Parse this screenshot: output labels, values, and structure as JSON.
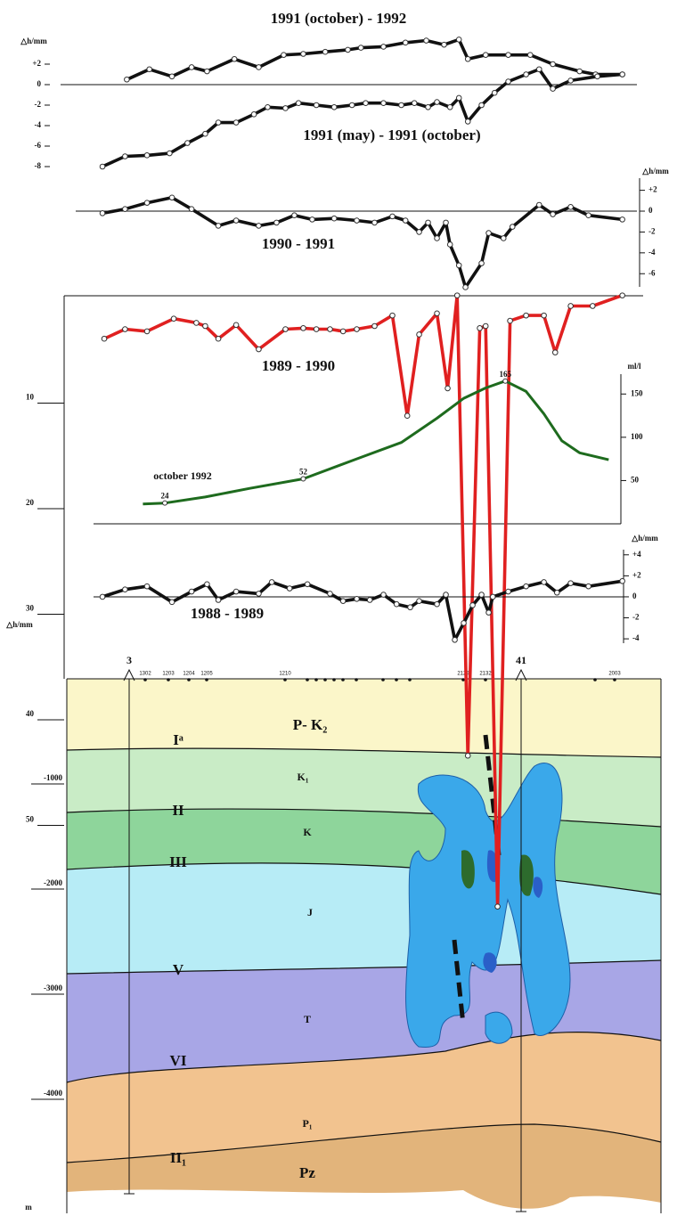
{
  "chart_data": [
    {
      "type": "line",
      "ylabel": "△h/mm",
      "ylim": [
        -10,
        5
      ],
      "yticks": [
        {
          "value": 2,
          "label": "+2"
        },
        0,
        -2,
        -4,
        -6,
        -8
      ],
      "xlim": [
        0,
        100
      ],
      "zero_line": true,
      "series": [
        {
          "name": "1991 (october) - 1992",
          "color": "#111111",
          "markers": true,
          "x": [
            10.1,
            13.9,
            17.7,
            21.0,
            23.6,
            28.2,
            32.3,
            36.5,
            39.8,
            43.5,
            47.3,
            49.5,
            53.3,
            57.0,
            60.5,
            63.5,
            66.0,
            67.5,
            70.5,
            74.3,
            78.0,
            81.8,
            86.3,
            89.0,
            93.5
          ],
          "values": [
            0.5,
            1.5,
            0.8,
            1.7,
            1.3,
            2.5,
            1.7,
            2.9,
            3.0,
            3.2,
            3.4,
            3.6,
            3.7,
            4.1,
            4.3,
            3.9,
            4.4,
            2.5,
            2.9,
            2.9,
            2.9,
            2.0,
            1.3,
            1.0,
            1.0
          ]
        },
        {
          "name": "1991 (may) - 1991 (october)",
          "color": "#111111",
          "markers": true,
          "x": [
            6.0,
            9.8,
            13.5,
            17.3,
            20.3,
            23.3,
            25.5,
            28.5,
            31.5,
            33.8,
            36.8,
            39.0,
            42.0,
            45.0,
            48.0,
            50.3,
            53.3,
            56.3,
            58.5,
            60.8,
            62.3,
            64.5,
            66.0,
            67.5,
            69.8,
            72.0,
            74.3,
            77.3,
            79.5,
            81.8,
            84.8,
            89.3,
            93.5
          ],
          "values": [
            -8.0,
            -7.0,
            -6.9,
            -6.7,
            -5.7,
            -4.8,
            -3.7,
            -3.7,
            -2.9,
            -2.2,
            -2.3,
            -1.8,
            -2.0,
            -2.2,
            -2.0,
            -1.8,
            -1.8,
            -2.0,
            -1.8,
            -2.2,
            -1.7,
            -2.2,
            -1.3,
            -3.6,
            -2.0,
            -0.8,
            0.3,
            1.0,
            1.5,
            -0.4,
            0.4,
            0.8,
            1.0
          ]
        }
      ]
    },
    {
      "type": "line",
      "ylabel": "△h/mm",
      "ylim": [
        -7.5,
        3
      ],
      "yticks": [
        {
          "value": 2,
          "label": "+2"
        },
        0,
        -2,
        -4,
        -6
      ],
      "xlim": [
        0,
        100
      ],
      "zero_line": true,
      "series": [
        {
          "name": "1990 - 1991",
          "color": "#111111",
          "markers": true,
          "x": [
            6.0,
            9.8,
            13.5,
            17.7,
            21.0,
            25.5,
            28.5,
            32.3,
            35.3,
            38.3,
            41.3,
            45.0,
            48.8,
            51.8,
            54.8,
            57.0,
            59.3,
            60.8,
            62.3,
            63.8,
            64.5,
            66.0,
            67.1,
            69.8,
            71.0,
            73.5,
            75.0,
            79.5,
            81.8,
            84.8,
            87.8,
            93.5
          ],
          "values": [
            -0.2,
            0.2,
            0.8,
            1.3,
            0.2,
            -1.4,
            -0.9,
            -1.4,
            -1.1,
            -0.4,
            -0.8,
            -0.7,
            -0.9,
            -1.1,
            -0.5,
            -0.9,
            -2.0,
            -1.1,
            -2.6,
            -1.1,
            -3.2,
            -5.2,
            -7.3,
            -5.0,
            -2.1,
            -2.6,
            -1.5,
            0.6,
            -0.3,
            0.4,
            -0.4,
            -0.8
          ]
        }
      ]
    },
    {
      "type": "line",
      "ylabel": "△h/mm",
      "ylim": [
        0,
        86
      ],
      "y_inverted": true,
      "yticks": [
        10,
        20,
        30,
        40,
        50
      ],
      "y2label": "ml/l",
      "y2lim": [
        0,
        175
      ],
      "y2ticks": [
        50,
        100,
        150
      ],
      "xlim": [
        0,
        100
      ],
      "series": [
        {
          "name": "1989 - 1990",
          "color": "#e02020",
          "markers": true,
          "x": [
            6.3,
            9.8,
            13.5,
            18.0,
            21.8,
            23.3,
            25.5,
            28.5,
            32.3,
            36.8,
            39.8,
            42.0,
            44.3,
            46.5,
            48.8,
            51.8,
            54.8,
            57.3,
            59.3,
            62.3,
            64.1,
            65.7,
            67.5,
            69.5,
            70.5,
            72.5,
            74.6,
            77.3,
            80.3,
            82.2,
            84.8,
            88.5,
            93.5
          ],
          "values": [
            3.9,
            3.0,
            3.2,
            2.0,
            2.4,
            2.7,
            3.9,
            2.6,
            4.9,
            3.0,
            2.9,
            3.0,
            3.0,
            3.2,
            3.0,
            2.7,
            1.7,
            11.2,
            3.5,
            1.5,
            8.6,
            -0.2,
            43.4,
            2.9,
            2.7,
            57.7,
            2.2,
            1.7,
            1.7,
            5.2,
            0.8,
            0.8,
            -0.2
          ]
        },
        {
          "name": "october 1992",
          "color": "#1e6b1e",
          "axis": "y2",
          "markers": false,
          "x": [
            12.8,
            16.5,
            23.3,
            30.8,
            39.8,
            48.8,
            56.3,
            62.3,
            66.8,
            70.5,
            73.8,
            77.3,
            80.3,
            83.3,
            86.3,
            91.2
          ],
          "values": [
            23,
            24,
            31,
            41,
            52,
            75,
            94,
            122,
            145,
            157,
            165,
            153,
            127,
            96,
            82,
            74
          ],
          "value_labels": [
            null,
            "24",
            null,
            null,
            "52",
            null,
            null,
            null,
            null,
            null,
            "165",
            null,
            null,
            null,
            null,
            null
          ]
        }
      ]
    },
    {
      "type": "line",
      "ylabel": "△h/mm",
      "ylim": [
        -4.5,
        5
      ],
      "yticks": [
        {
          "value": 4,
          "label": "+4"
        },
        {
          "value": 2,
          "label": "+2"
        },
        0,
        -2,
        -4
      ],
      "xlim": [
        0,
        100
      ],
      "zero_line": true,
      "series": [
        {
          "name": "1988 - 1989",
          "color": "#111111",
          "markers": true,
          "x": [
            6.0,
            9.8,
            13.5,
            17.7,
            21.0,
            23.6,
            25.5,
            28.5,
            32.3,
            34.5,
            37.5,
            40.5,
            44.3,
            46.5,
            48.8,
            51.0,
            53.3,
            55.5,
            57.8,
            59.3,
            62.3,
            63.8,
            65.3,
            66.8,
            68.3,
            69.8,
            71.0,
            71.7,
            74.3,
            77.3,
            80.3,
            82.5,
            84.8,
            87.8,
            93.5
          ],
          "values": [
            0,
            0.7,
            1.0,
            -0.5,
            0.5,
            1.2,
            -0.3,
            0.5,
            0.3,
            1.4,
            0.8,
            1.2,
            0.3,
            -0.4,
            -0.2,
            -0.3,
            0.2,
            -0.7,
            -1.0,
            -0.4,
            -0.7,
            0.2,
            -4.1,
            -2.5,
            -0.8,
            0.2,
            -1.5,
            0,
            0.5,
            1.0,
            1.4,
            0.4,
            1.3,
            1.0,
            1.5
          ]
        }
      ]
    }
  ],
  "section": {
    "layers": [
      "P- K₂",
      "K₁",
      "K",
      "J",
      "T",
      "P₁",
      "Pz"
    ],
    "horizons": [
      "Iᵃ",
      "II",
      "III",
      "V",
      "VI",
      "II₁"
    ],
    "wells": [
      "3",
      "41"
    ],
    "benchmarks": [
      "1302",
      "1203",
      "1204",
      "1205",
      "1210",
      "2129",
      "2132",
      "2003"
    ],
    "depth_ticks": [
      -1000,
      -2000,
      -3000,
      -4000
    ],
    "depth_unit": "m"
  }
}
